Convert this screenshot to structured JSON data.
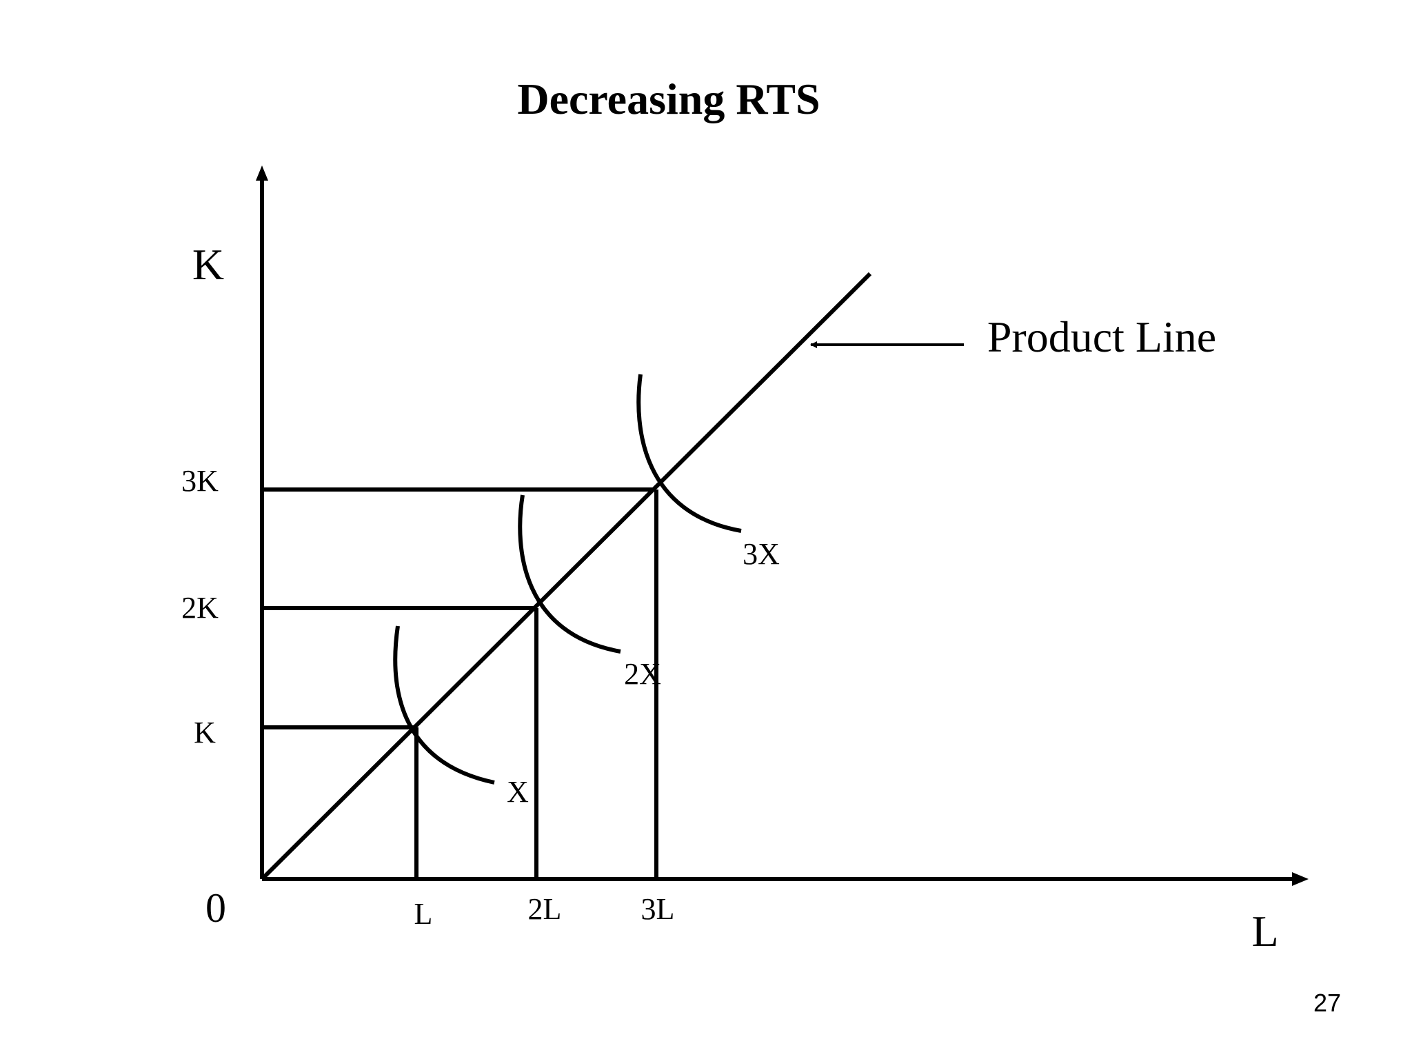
{
  "title": "Decreasing RTS",
  "page_number": "27",
  "axes": {
    "y_label": "K",
    "x_label": "L",
    "origin_label": "0"
  },
  "y_ticks": [
    "K",
    "2K",
    "3K"
  ],
  "x_ticks": [
    "L",
    "2L",
    "3L"
  ],
  "isoquants": [
    "X",
    "2X",
    "3X"
  ],
  "product_line_label": "Product Line"
}
